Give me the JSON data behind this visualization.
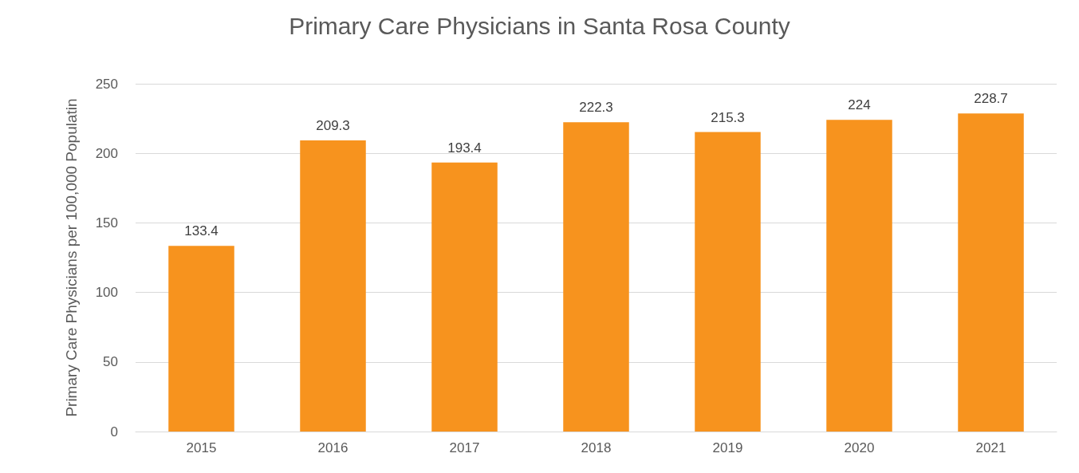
{
  "chart_data": {
    "type": "bar",
    "title": "Primary Care Physicians in Santa Rosa County",
    "ylabel": "Primary Care Physicians per 100,000 Populatin",
    "categories": [
      "2015",
      "2016",
      "2017",
      "2018",
      "2019",
      "2020",
      "2021"
    ],
    "values": [
      133.4,
      209.3,
      193.4,
      222.3,
      215.3,
      224,
      228.7
    ],
    "color": "#f7931e",
    "ylim": [
      0,
      250
    ],
    "yticks": [
      0,
      50,
      100,
      150,
      200,
      250
    ],
    "grid": "y",
    "data_labels": true
  }
}
